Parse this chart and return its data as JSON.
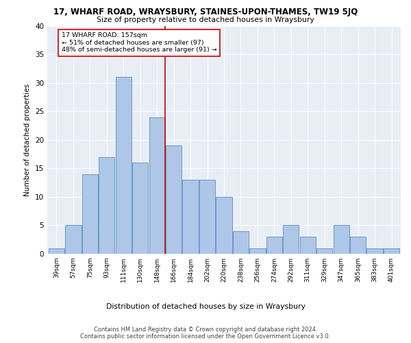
{
  "title_line1": "17, WHARF ROAD, WRAYSBURY, STAINES-UPON-THAMES, TW19 5JQ",
  "title_line2": "Size of property relative to detached houses in Wraysbury",
  "xlabel": "Distribution of detached houses by size in Wraysbury",
  "ylabel": "Number of detached properties",
  "categories": [
    "39sqm",
    "57sqm",
    "75sqm",
    "93sqm",
    "111sqm",
    "130sqm",
    "148sqm",
    "166sqm",
    "184sqm",
    "202sqm",
    "220sqm",
    "238sqm",
    "256sqm",
    "274sqm",
    "292sqm",
    "311sqm",
    "329sqm",
    "347sqm",
    "365sqm",
    "383sqm",
    "401sqm"
  ],
  "values": [
    1,
    5,
    14,
    17,
    31,
    16,
    24,
    19,
    13,
    13,
    10,
    4,
    1,
    3,
    5,
    3,
    1,
    5,
    3,
    1,
    1
  ],
  "bar_color": "#aec6e8",
  "bar_edge_color": "#5a8fc0",
  "vline_color": "#cc0000",
  "annotation_text": "17 WHARF ROAD: 157sqm\n← 51% of detached houses are smaller (97)\n48% of semi-detached houses are larger (91) →",
  "annotation_box_color": "#ffffff",
  "annotation_box_edge": "#cc0000",
  "background_color": "#e8eef5",
  "ylim": [
    0,
    40
  ],
  "yticks": [
    0,
    5,
    10,
    15,
    20,
    25,
    30,
    35,
    40
  ],
  "footer_line1": "Contains HM Land Registry data © Crown copyright and database right 2024.",
  "footer_line2": "Contains public sector information licensed under the Open Government Licence v3.0."
}
